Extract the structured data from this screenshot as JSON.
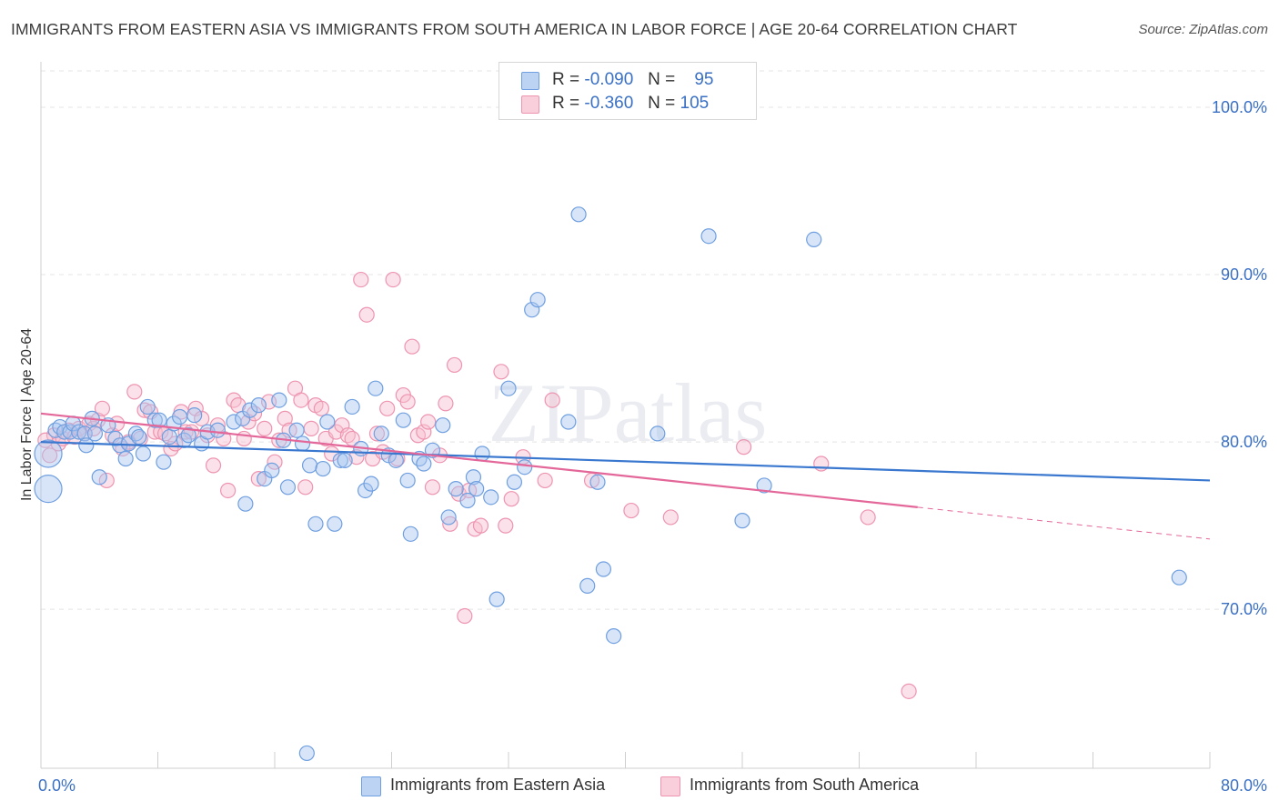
{
  "title": "IMMIGRANTS FROM EASTERN ASIA VS IMMIGRANTS FROM SOUTH AMERICA IN LABOR FORCE | AGE 20-64 CORRELATION CHART",
  "source": "Source: ZipAtlas.com",
  "watermark": "ZIPatlas",
  "legend": {
    "blue": {
      "r_label": "R =",
      "r_value": "-0.090",
      "n_label": "N =",
      "n_value": "95"
    },
    "pink": {
      "r_label": "R =",
      "r_value": "-0.360",
      "n_label": "N =",
      "n_value": "105"
    }
  },
  "colors": {
    "blue_fill": "#a9c6f0",
    "blue_stroke": "#6f9fe0",
    "blue_line": "#3a78d0",
    "pink_fill": "#f7bfd0",
    "pink_stroke": "#ee94b0",
    "pink_line": "#e4679a",
    "tick_text": "#3a70c4",
    "grid": "#e4e4e4"
  },
  "chart_data": {
    "type": "scatter",
    "title": "IMMIGRANTS FROM EASTERN ASIA VS IMMIGRANTS FROM SOUTH AMERICA IN LABOR FORCE | AGE 20-64 CORRELATION CHART",
    "xlabel": "",
    "ylabel": "In Labor Force | Age 20-64",
    "xlim": [
      0,
      80
    ],
    "ylim": [
      60.5,
      102.5
    ],
    "x_tick_labels": [
      "0.0%",
      "80.0%"
    ],
    "y_ticks": [
      70,
      80,
      90,
      100
    ],
    "y_tick_labels": [
      "70.0%",
      "80.0%",
      "90.0%",
      "100.0%"
    ],
    "grid": "horizontal dashed",
    "legend_position": "top-center",
    "series": [
      {
        "name": "Immigrants from Eastern Asia",
        "color": "#6f9fe0",
        "trend": {
          "x": [
            0,
            80
          ],
          "y": [
            80.0,
            77.7
          ]
        },
        "points": [
          [
            0.5,
            79.3
          ],
          [
            0.5,
            77.2
          ],
          [
            1.0,
            80.7
          ],
          [
            1.3,
            80.9
          ],
          [
            1.6,
            80.6
          ],
          [
            2.0,
            80.6
          ],
          [
            2.2,
            81.1
          ],
          [
            2.6,
            80.6
          ],
          [
            3.0,
            80.5
          ],
          [
            3.1,
            79.8
          ],
          [
            3.5,
            81.4
          ],
          [
            3.7,
            80.5
          ],
          [
            4.0,
            77.9
          ],
          [
            4.6,
            81.0
          ],
          [
            5.1,
            80.2
          ],
          [
            5.4,
            79.8
          ],
          [
            5.8,
            79.0
          ],
          [
            6.0,
            79.9
          ],
          [
            6.5,
            80.5
          ],
          [
            6.7,
            80.3
          ],
          [
            7.0,
            79.3
          ],
          [
            7.3,
            82.1
          ],
          [
            7.8,
            81.3
          ],
          [
            8.1,
            81.3
          ],
          [
            8.4,
            78.8
          ],
          [
            8.8,
            80.3
          ],
          [
            9.1,
            81.1
          ],
          [
            9.5,
            81.5
          ],
          [
            9.8,
            80.1
          ],
          [
            10.1,
            80.4
          ],
          [
            10.5,
            81.6
          ],
          [
            11.0,
            79.9
          ],
          [
            11.4,
            80.6
          ],
          [
            12.1,
            80.7
          ],
          [
            13.2,
            81.2
          ],
          [
            13.8,
            81.4
          ],
          [
            14.0,
            76.3
          ],
          [
            14.3,
            81.9
          ],
          [
            14.9,
            82.2
          ],
          [
            15.3,
            77.8
          ],
          [
            15.8,
            78.3
          ],
          [
            16.3,
            82.5
          ],
          [
            16.6,
            80.1
          ],
          [
            16.9,
            77.3
          ],
          [
            17.5,
            80.7
          ],
          [
            17.9,
            79.9
          ],
          [
            18.2,
            61.4
          ],
          [
            18.4,
            78.6
          ],
          [
            18.8,
            75.1
          ],
          [
            19.3,
            78.4
          ],
          [
            19.6,
            81.2
          ],
          [
            20.1,
            75.1
          ],
          [
            20.5,
            78.9
          ],
          [
            20.8,
            78.9
          ],
          [
            21.3,
            82.1
          ],
          [
            21.9,
            79.6
          ],
          [
            22.2,
            77.1
          ],
          [
            22.6,
            77.5
          ],
          [
            22.9,
            83.2
          ],
          [
            23.3,
            80.5
          ],
          [
            23.8,
            79.2
          ],
          [
            24.3,
            78.9
          ],
          [
            24.8,
            81.3
          ],
          [
            25.1,
            77.7
          ],
          [
            25.3,
            74.5
          ],
          [
            25.9,
            79.0
          ],
          [
            26.2,
            78.7
          ],
          [
            26.8,
            79.5
          ],
          [
            27.5,
            81.0
          ],
          [
            27.9,
            75.5
          ],
          [
            28.4,
            77.2
          ],
          [
            29.2,
            76.5
          ],
          [
            29.6,
            77.9
          ],
          [
            29.8,
            77.2
          ],
          [
            30.2,
            79.3
          ],
          [
            30.8,
            76.7
          ],
          [
            31.2,
            70.6
          ],
          [
            32.0,
            83.2
          ],
          [
            32.4,
            77.6
          ],
          [
            33.1,
            78.5
          ],
          [
            33.6,
            87.9
          ],
          [
            34.0,
            88.5
          ],
          [
            36.1,
            81.2
          ],
          [
            36.8,
            93.6
          ],
          [
            37.4,
            71.4
          ],
          [
            38.1,
            77.6
          ],
          [
            38.5,
            72.4
          ],
          [
            39.2,
            68.4
          ],
          [
            42.2,
            80.5
          ],
          [
            45.7,
            92.3
          ],
          [
            48.0,
            75.3
          ],
          [
            49.5,
            77.4
          ],
          [
            52.9,
            92.1
          ],
          [
            77.9,
            71.9
          ]
        ]
      },
      {
        "name": "Immigrants from South America",
        "color": "#ee94b0",
        "trend": {
          "x": [
            0,
            60
          ],
          "y": [
            81.7,
            76.1
          ]
        },
        "trend_dashed": {
          "x": [
            60,
            80
          ],
          "y": [
            76.1,
            74.2
          ]
        },
        "points": [
          [
            0.6,
            79.2
          ],
          [
            0.9,
            80.4
          ],
          [
            1.2,
            79.9
          ],
          [
            1.5,
            80.2
          ],
          [
            1.9,
            80.7
          ],
          [
            2.3,
            80.3
          ],
          [
            2.6,
            80.8
          ],
          [
            3.0,
            80.5
          ],
          [
            3.3,
            81.1
          ],
          [
            3.6,
            80.8
          ],
          [
            3.9,
            81.3
          ],
          [
            4.2,
            82.0
          ],
          [
            4.5,
            77.7
          ],
          [
            4.9,
            80.4
          ],
          [
            5.2,
            81.1
          ],
          [
            5.6,
            79.6
          ],
          [
            6.0,
            80.0
          ],
          [
            6.4,
            83.0
          ],
          [
            6.8,
            80.2
          ],
          [
            7.1,
            81.9
          ],
          [
            7.5,
            81.8
          ],
          [
            7.8,
            80.6
          ],
          [
            8.2,
            80.6
          ],
          [
            8.5,
            80.5
          ],
          [
            8.9,
            79.6
          ],
          [
            9.2,
            79.9
          ],
          [
            9.6,
            81.8
          ],
          [
            9.9,
            80.6
          ],
          [
            10.3,
            80.6
          ],
          [
            10.6,
            82.0
          ],
          [
            11.0,
            81.4
          ],
          [
            11.4,
            80.4
          ],
          [
            11.8,
            78.6
          ],
          [
            12.1,
            81.0
          ],
          [
            12.5,
            80.2
          ],
          [
            12.8,
            77.1
          ],
          [
            13.2,
            82.5
          ],
          [
            13.5,
            82.2
          ],
          [
            13.9,
            80.2
          ],
          [
            14.2,
            81.2
          ],
          [
            14.6,
            81.7
          ],
          [
            14.9,
            77.8
          ],
          [
            15.3,
            80.8
          ],
          [
            15.6,
            82.4
          ],
          [
            16.0,
            78.8
          ],
          [
            16.3,
            80.1
          ],
          [
            16.7,
            81.4
          ],
          [
            17.0,
            80.7
          ],
          [
            17.4,
            83.2
          ],
          [
            17.8,
            82.5
          ],
          [
            18.1,
            77.3
          ],
          [
            18.5,
            80.8
          ],
          [
            18.8,
            82.2
          ],
          [
            19.2,
            82.0
          ],
          [
            19.5,
            80.2
          ],
          [
            19.9,
            79.3
          ],
          [
            20.2,
            80.6
          ],
          [
            20.6,
            81.0
          ],
          [
            21.0,
            80.4
          ],
          [
            21.3,
            80.2
          ],
          [
            21.6,
            79.1
          ],
          [
            21.9,
            89.7
          ],
          [
            22.3,
            87.6
          ],
          [
            22.7,
            79.0
          ],
          [
            23.0,
            80.5
          ],
          [
            23.4,
            79.4
          ],
          [
            23.7,
            82.0
          ],
          [
            24.1,
            89.7
          ],
          [
            24.4,
            79.0
          ],
          [
            24.8,
            82.8
          ],
          [
            25.1,
            82.4
          ],
          [
            25.4,
            85.7
          ],
          [
            25.8,
            80.4
          ],
          [
            26.2,
            80.6
          ],
          [
            26.5,
            81.2
          ],
          [
            26.8,
            77.3
          ],
          [
            27.3,
            79.2
          ],
          [
            27.7,
            82.3
          ],
          [
            28.0,
            75.1
          ],
          [
            28.3,
            84.6
          ],
          [
            28.6,
            76.9
          ],
          [
            29.0,
            69.6
          ],
          [
            29.3,
            77.1
          ],
          [
            29.7,
            74.8
          ],
          [
            30.1,
            75.0
          ],
          [
            31.5,
            84.2
          ],
          [
            31.8,
            75.0
          ],
          [
            32.2,
            76.6
          ],
          [
            33.0,
            79.1
          ],
          [
            34.5,
            77.7
          ],
          [
            35.0,
            82.5
          ],
          [
            37.7,
            77.7
          ],
          [
            40.4,
            75.9
          ],
          [
            43.1,
            75.5
          ],
          [
            48.1,
            79.7
          ],
          [
            53.4,
            78.7
          ],
          [
            56.6,
            75.5
          ],
          [
            59.4,
            65.1
          ],
          [
            0.3,
            80.1
          ]
        ]
      }
    ]
  },
  "bottom_legend": {
    "blue_label": "Immigrants from Eastern Asia",
    "pink_label": "Immigrants from South America"
  }
}
